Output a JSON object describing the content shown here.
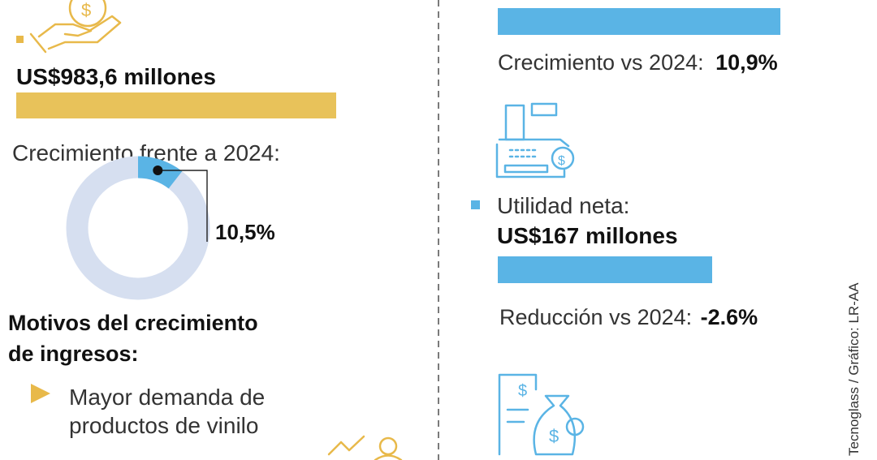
{
  "left": {
    "amount": "US$983,6 millones",
    "growth_label": "Crecimiento frente a 2024:",
    "donut": {
      "value": 10.5,
      "label": "10,5%"
    },
    "reasons_title": [
      "Motivos del crecimiento",
      "de ingresos:"
    ],
    "reasons": [
      [
        "Mayor demanda de",
        "productos de vinilo"
      ]
    ]
  },
  "right": {
    "growth_label": "Crecimiento vs 2024:",
    "growth_value": "10,9%",
    "net_income_label": "Utilidad neta:",
    "net_income_amount": "US$167 millones",
    "reduction_label": "Reducción vs 2024:",
    "reduction_value": "-2.6%"
  },
  "credit": "Tecnoglass / Gráfico: LR-AA"
}
